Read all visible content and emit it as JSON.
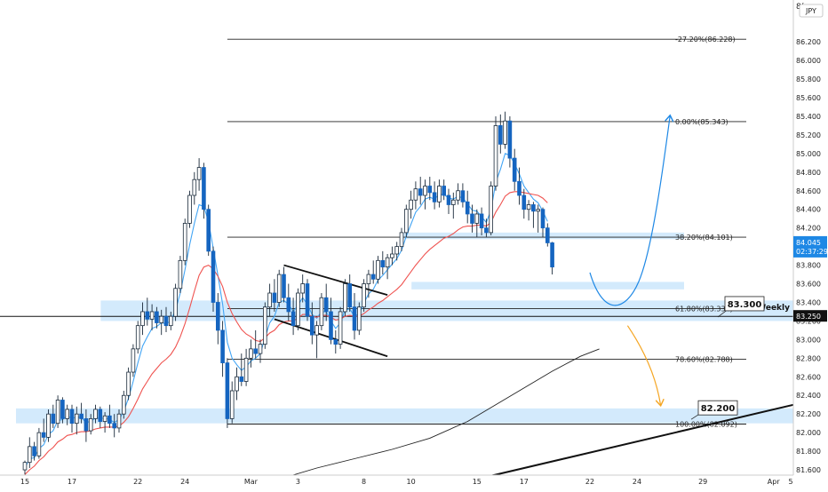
{
  "chart_data": {
    "type": "candlestick",
    "currency_label": "JPY",
    "top_corner_label": "8(",
    "ylim": [
      81.4,
      86.65
    ],
    "y_ticks": [
      "86.200",
      "86.000",
      "85.800",
      "85.600",
      "85.400",
      "85.200",
      "85.000",
      "84.800",
      "84.600",
      "84.400",
      "84.200",
      "84.000",
      "83.800",
      "83.600",
      "83.400",
      "83.200",
      "83.000",
      "82.800",
      "82.600",
      "82.400",
      "82.200",
      "82.000",
      "81.800",
      "81.600"
    ],
    "x_ticks": [
      {
        "label": "15",
        "slot": 0
      },
      {
        "label": "17",
        "slot": 10
      },
      {
        "label": "22",
        "slot": 24
      },
      {
        "label": "24",
        "slot": 34
      },
      {
        "label": "Mar",
        "slot": 48
      },
      {
        "label": "3",
        "slot": 58
      },
      {
        "label": "8",
        "slot": 72
      },
      {
        "label": "10",
        "slot": 82
      },
      {
        "label": "15",
        "slot": 96
      },
      {
        "label": "17",
        "slot": 106
      },
      {
        "label": "22",
        "slot": 120
      },
      {
        "label": "24",
        "slot": 130
      },
      {
        "label": "29",
        "slot": 144
      },
      {
        "label": "Apr",
        "slot": 159
      },
      {
        "label": "5",
        "slot": 169
      }
    ],
    "price_tag": {
      "value": "84.045",
      "countdown": "02:37:29"
    },
    "weekly_level": {
      "value": "83.250",
      "label": "Weekly"
    },
    "fib_levels": [
      {
        "label": "-27.20%(86.228)",
        "value": 86.228
      },
      {
        "label": "0.00%(85.343)",
        "value": 85.343
      },
      {
        "label": "38.20%(84.101)",
        "value": 84.101
      },
      {
        "label": "61.80%(83.334)",
        "value": 83.334
      },
      {
        "label": "78.60%(82.788)",
        "value": 82.788
      },
      {
        "label": "100.00%(82.092)",
        "value": 82.092
      }
    ],
    "callouts": [
      {
        "label": "83.300",
        "value": 83.3
      },
      {
        "label": "82.200",
        "value": 82.2
      }
    ],
    "zones": [
      {
        "from": 83.2,
        "to": 83.42,
        "x_from_slot": 18,
        "x_to_slot": 170
      },
      {
        "from": 82.1,
        "to": 82.26,
        "x_from_slot": 0,
        "x_to_slot": 170
      },
      {
        "from": 84.08,
        "to": 84.15,
        "x_from_slot": 82,
        "x_to_slot": 140
      },
      {
        "from": 83.54,
        "to": 83.62,
        "x_from_slot": 84,
        "x_to_slot": 140
      }
    ],
    "ohlc": [
      [
        81.6,
        81.7,
        81.55,
        81.68
      ],
      [
        81.68,
        81.95,
        81.62,
        81.85
      ],
      [
        81.85,
        81.9,
        81.7,
        81.75
      ],
      [
        81.75,
        82.05,
        81.72,
        82.0
      ],
      [
        82.0,
        82.15,
        81.9,
        81.95
      ],
      [
        81.95,
        82.25,
        81.9,
        82.2
      ],
      [
        82.2,
        82.3,
        82.05,
        82.1
      ],
      [
        82.1,
        82.4,
        82.05,
        82.35
      ],
      [
        82.35,
        82.38,
        82.1,
        82.15
      ],
      [
        82.15,
        82.3,
        82.08,
        82.25
      ],
      [
        82.25,
        82.3,
        82.0,
        82.1
      ],
      [
        82.1,
        82.28,
        81.98,
        82.2
      ],
      [
        82.2,
        82.32,
        82.1,
        82.15
      ],
      [
        82.15,
        82.25,
        81.9,
        82.02
      ],
      [
        82.02,
        82.2,
        81.98,
        82.15
      ],
      [
        82.15,
        82.3,
        82.1,
        82.25
      ],
      [
        82.25,
        82.28,
        82.05,
        82.12
      ],
      [
        82.12,
        82.22,
        82.0,
        82.18
      ],
      [
        82.18,
        82.3,
        82.05,
        82.1
      ],
      [
        82.1,
        82.2,
        81.95,
        82.05
      ],
      [
        82.05,
        82.25,
        82.0,
        82.2
      ],
      [
        82.2,
        82.45,
        82.15,
        82.4
      ],
      [
        82.4,
        82.7,
        82.35,
        82.65
      ],
      [
        82.65,
        82.95,
        82.6,
        82.9
      ],
      [
        82.9,
        83.2,
        82.85,
        83.15
      ],
      [
        83.15,
        83.4,
        83.05,
        83.3
      ],
      [
        83.3,
        83.45,
        83.15,
        83.22
      ],
      [
        83.22,
        83.38,
        83.1,
        83.3
      ],
      [
        83.3,
        83.35,
        83.12,
        83.18
      ],
      [
        83.18,
        83.32,
        83.05,
        83.25
      ],
      [
        83.25,
        83.35,
        83.08,
        83.15
      ],
      [
        83.15,
        83.3,
        83.1,
        83.25
      ],
      [
        83.25,
        83.6,
        83.2,
        83.55
      ],
      [
        83.55,
        83.9,
        83.5,
        83.85
      ],
      [
        83.85,
        84.3,
        83.8,
        84.25
      ],
      [
        84.25,
        84.6,
        84.2,
        84.55
      ],
      [
        84.55,
        84.8,
        84.45,
        84.72
      ],
      [
        84.72,
        84.95,
        84.6,
        84.85
      ],
      [
        84.85,
        84.9,
        84.3,
        84.4
      ],
      [
        84.4,
        84.45,
        83.9,
        83.95
      ],
      [
        83.95,
        84.0,
        83.3,
        83.4
      ],
      [
        83.4,
        83.5,
        82.95,
        83.1
      ],
      [
        83.1,
        83.2,
        82.6,
        82.75
      ],
      [
        82.75,
        82.8,
        82.05,
        82.15
      ],
      [
        82.15,
        82.55,
        82.1,
        82.45
      ],
      [
        82.45,
        82.7,
        82.35,
        82.6
      ],
      [
        82.6,
        82.85,
        82.5,
        82.55
      ],
      [
        82.55,
        82.9,
        82.5,
        82.8
      ],
      [
        82.8,
        83.0,
        82.7,
        82.9
      ],
      [
        82.9,
        83.1,
        82.8,
        82.85
      ],
      [
        82.85,
        83.0,
        82.75,
        82.95
      ],
      [
        82.95,
        83.4,
        82.9,
        83.35
      ],
      [
        83.35,
        83.6,
        83.25,
        83.5
      ],
      [
        83.5,
        83.65,
        83.3,
        83.4
      ],
      [
        83.4,
        83.75,
        83.35,
        83.7
      ],
      [
        83.7,
        83.78,
        83.4,
        83.45
      ],
      [
        83.45,
        83.6,
        83.2,
        83.3
      ],
      [
        83.3,
        83.45,
        83.05,
        83.15
      ],
      [
        83.15,
        83.55,
        83.1,
        83.5
      ],
      [
        83.5,
        83.7,
        83.4,
        83.6
      ],
      [
        83.6,
        83.65,
        83.2,
        83.25
      ],
      [
        83.25,
        83.4,
        82.95,
        83.05
      ],
      [
        83.05,
        83.2,
        82.8,
        83.15
      ],
      [
        83.15,
        83.5,
        83.1,
        83.45
      ],
      [
        83.45,
        83.6,
        83.2,
        83.3
      ],
      [
        83.3,
        83.45,
        82.95,
        83.0
      ],
      [
        83.0,
        83.1,
        82.85,
        82.95
      ],
      [
        82.95,
        83.35,
        82.9,
        83.3
      ],
      [
        83.3,
        83.65,
        83.25,
        83.6
      ],
      [
        83.6,
        83.7,
        83.3,
        83.35
      ],
      [
        83.35,
        83.5,
        83.0,
        83.1
      ],
      [
        83.1,
        83.4,
        83.05,
        83.35
      ],
      [
        83.35,
        83.65,
        83.3,
        83.6
      ],
      [
        83.6,
        83.75,
        83.45,
        83.7
      ],
      [
        83.7,
        83.85,
        83.6,
        83.65
      ],
      [
        83.65,
        83.9,
        83.6,
        83.85
      ],
      [
        83.85,
        83.95,
        83.7,
        83.78
      ],
      [
        83.78,
        83.92,
        83.65,
        83.88
      ],
      [
        83.88,
        84.0,
        83.8,
        83.92
      ],
      [
        83.92,
        84.05,
        83.85,
        84.0
      ],
      [
        84.0,
        84.2,
        83.95,
        84.15
      ],
      [
        84.15,
        84.45,
        84.1,
        84.4
      ],
      [
        84.4,
        84.6,
        84.3,
        84.5
      ],
      [
        84.5,
        84.7,
        84.4,
        84.62
      ],
      [
        84.62,
        84.75,
        84.45,
        84.55
      ],
      [
        84.55,
        84.72,
        84.4,
        84.65
      ],
      [
        84.65,
        84.75,
        84.5,
        84.58
      ],
      [
        84.58,
        84.7,
        84.4,
        84.48
      ],
      [
        84.48,
        84.72,
        84.42,
        84.65
      ],
      [
        84.65,
        84.72,
        84.5,
        84.55
      ],
      [
        84.55,
        84.62,
        84.35,
        84.45
      ],
      [
        84.45,
        84.58,
        84.3,
        84.5
      ],
      [
        84.5,
        84.68,
        84.45,
        84.6
      ],
      [
        84.6,
        84.68,
        84.42,
        84.48
      ],
      [
        84.48,
        84.6,
        84.25,
        84.35
      ],
      [
        84.35,
        84.45,
        84.15,
        84.25
      ],
      [
        84.25,
        84.4,
        84.1,
        84.35
      ],
      [
        84.35,
        84.42,
        84.12,
        84.2
      ],
      [
        84.2,
        84.3,
        84.1,
        84.15
      ],
      [
        84.15,
        84.7,
        84.12,
        84.65
      ],
      [
        84.65,
        85.4,
        84.6,
        85.3
      ],
      [
        85.3,
        85.42,
        85.0,
        85.1
      ],
      [
        85.1,
        85.45,
        85.05,
        85.35
      ],
      [
        85.35,
        85.4,
        84.85,
        84.95
      ],
      [
        84.95,
        85.05,
        84.6,
        84.7
      ],
      [
        84.7,
        84.85,
        84.45,
        84.55
      ],
      [
        84.55,
        84.62,
        84.3,
        84.4
      ],
      [
        84.4,
        84.5,
        84.28,
        84.45
      ],
      [
        84.45,
        84.48,
        84.2,
        84.38
      ],
      [
        84.38,
        84.45,
        84.15,
        84.4
      ],
      [
        84.4,
        84.42,
        84.1,
        84.2
      ],
      [
        84.2,
        84.25,
        84.0,
        84.04
      ],
      [
        84.04,
        84.05,
        83.7,
        83.78
      ]
    ],
    "series": [
      {
        "kind": "ema_fast",
        "color": "#42a5f5",
        "values": [
          81.62,
          81.72,
          81.73,
          81.83,
          81.87,
          81.98,
          82.02,
          82.13,
          82.14,
          82.18,
          82.15,
          82.17,
          82.16,
          82.11,
          82.12,
          82.16,
          82.15,
          82.16,
          82.14,
          82.11,
          82.14,
          82.23,
          82.37,
          82.55,
          82.75,
          82.93,
          83.03,
          83.12,
          83.14,
          83.18,
          83.17,
          83.2,
          83.32,
          83.5,
          83.75,
          84.02,
          84.25,
          84.45,
          84.43,
          84.27,
          83.98,
          83.69,
          83.38,
          82.97,
          82.8,
          82.73,
          82.67,
          82.71,
          82.77,
          82.8,
          82.85,
          83.02,
          83.18,
          83.25,
          83.4,
          83.42,
          83.38,
          83.3,
          83.37,
          83.45,
          83.38,
          83.27,
          83.23,
          83.3,
          83.3,
          83.2,
          83.12,
          83.18,
          83.32,
          83.33,
          83.25,
          83.28,
          83.39,
          83.49,
          83.54,
          83.64,
          83.69,
          83.75,
          83.81,
          83.87,
          83.96,
          84.11,
          84.24,
          84.37,
          84.43,
          84.51,
          84.53,
          84.51,
          84.56,
          84.56,
          84.52,
          84.51,
          84.54,
          84.52,
          84.46,
          84.39,
          84.38,
          84.32,
          84.26,
          84.39,
          84.69,
          84.83,
          85.0,
          84.98,
          84.89,
          84.78,
          84.65,
          84.58,
          84.51,
          84.47,
          84.38,
          84.27
        ],
        "until_slot": 110
      },
      {
        "kind": "ema_slow",
        "color": "#ef5350",
        "values": [
          81.55,
          81.6,
          81.64,
          81.7,
          81.74,
          81.8,
          81.84,
          81.9,
          81.93,
          81.97,
          81.98,
          82.0,
          82.01,
          82.01,
          82.02,
          82.04,
          82.05,
          82.06,
          82.06,
          82.06,
          82.07,
          82.11,
          82.17,
          82.26,
          82.36,
          82.47,
          82.55,
          82.63,
          82.69,
          82.75,
          82.79,
          82.84,
          82.92,
          83.03,
          83.17,
          83.34,
          83.52,
          83.69,
          83.78,
          83.8,
          83.76,
          83.68,
          83.57,
          83.4,
          83.28,
          83.19,
          83.11,
          83.06,
          83.03,
          82.99,
          82.98,
          83.02,
          83.07,
          83.1,
          83.16,
          83.19,
          83.2,
          83.2,
          83.23,
          83.27,
          83.27,
          83.25,
          83.24,
          83.26,
          83.26,
          83.24,
          83.21,
          83.22,
          83.25,
          83.26,
          83.25,
          83.25,
          83.28,
          83.32,
          83.35,
          83.39,
          83.42,
          83.46,
          83.5,
          83.54,
          83.59,
          83.66,
          83.73,
          83.8,
          83.86,
          83.92,
          83.97,
          84.01,
          84.05,
          84.09,
          84.11,
          84.14,
          84.18,
          84.21,
          84.22,
          84.22,
          84.23,
          84.23,
          84.22,
          84.26,
          84.37,
          84.45,
          84.54,
          84.58,
          84.59,
          84.59,
          84.58,
          84.57,
          84.56,
          84.55,
          84.52,
          84.47
        ],
        "until_slot": 110
      },
      {
        "kind": "sma_long",
        "color": "#222222",
        "points": [
          [
            56,
            81.53
          ],
          [
            62,
            81.62
          ],
          [
            70,
            81.72
          ],
          [
            78,
            81.82
          ],
          [
            86,
            81.94
          ],
          [
            94,
            82.12
          ],
          [
            100,
            82.3
          ],
          [
            106,
            82.48
          ],
          [
            112,
            82.66
          ],
          [
            118,
            82.82
          ],
          [
            122,
            82.9
          ]
        ]
      }
    ],
    "drawings": [
      {
        "kind": "channel_upper",
        "points": [
          [
            55,
            83.8
          ],
          [
            77,
            83.48
          ]
        ]
      },
      {
        "kind": "channel_lower",
        "points": [
          [
            53,
            83.22
          ],
          [
            77,
            82.82
          ]
        ]
      },
      {
        "kind": "trendline",
        "points": [
          [
            96,
            81.5
          ],
          [
            170,
            82.38
          ]
        ]
      }
    ],
    "arrows": [
      {
        "kind": "bullish_path",
        "color": "#1e88e5",
        "from": [
          120,
          83.72
        ],
        "to": [
          137,
          85.4
        ]
      },
      {
        "kind": "bearish_path",
        "color": "#f5a623",
        "from": [
          128,
          83.15
        ],
        "to": [
          135,
          82.3
        ]
      }
    ]
  }
}
